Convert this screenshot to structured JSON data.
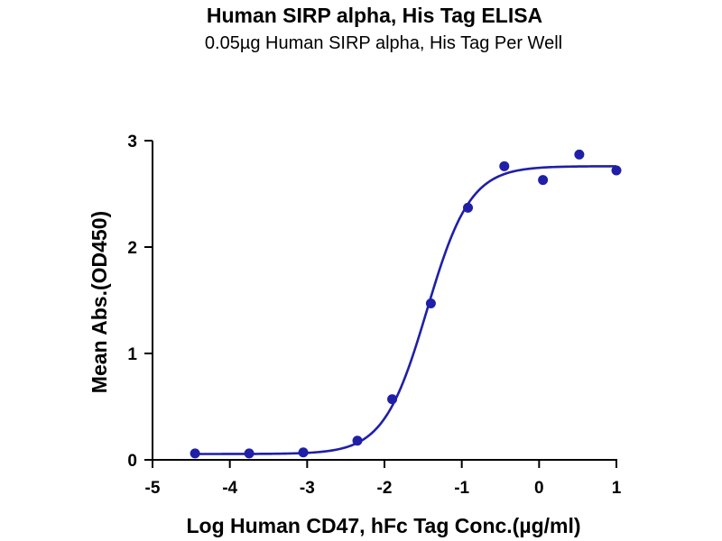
{
  "chart_data": {
    "type": "scatter",
    "title": "Human SIRP alpha, His Tag ELISA",
    "subtitle": "0.05µg Human SIRP alpha, His Tag Per Well",
    "xlabel": "Log Human CD47, hFc Tag Conc.(µg/ml)",
    "ylabel": "Mean Abs.(OD450)",
    "xlim": [
      -5,
      1
    ],
    "ylim": [
      0,
      3
    ],
    "xticks": [
      -5,
      -4,
      -3,
      -2,
      -1,
      0,
      1
    ],
    "yticks": [
      0,
      1,
      2,
      3
    ],
    "xtick_labels": [
      "-5",
      "-4",
      "-3",
      "-2",
      "-1",
      "0",
      "1"
    ],
    "ytick_labels": [
      "0",
      "1",
      "2",
      "3"
    ],
    "grid": false,
    "legend": "none",
    "color": "#1f1fa8",
    "series": [
      {
        "points": [
          {
            "x": -4.45,
            "y": 0.06
          },
          {
            "x": -3.75,
            "y": 0.06
          },
          {
            "x": -3.05,
            "y": 0.07
          },
          {
            "x": -2.35,
            "y": 0.18
          },
          {
            "x": -1.9,
            "y": 0.57
          },
          {
            "x": -1.4,
            "y": 1.47
          },
          {
            "x": -0.92,
            "y": 2.37
          },
          {
            "x": -0.45,
            "y": 2.76
          },
          {
            "x": 0.05,
            "y": 2.63
          },
          {
            "x": 0.52,
            "y": 2.87
          },
          {
            "x": 1.0,
            "y": 2.72
          }
        ],
        "fit": {
          "model": "4PL",
          "bottom": 0.055,
          "top": 2.76,
          "logEC50": -1.45,
          "hill": 1.55,
          "x_range": [
            -4.45,
            1.0
          ]
        }
      }
    ]
  }
}
